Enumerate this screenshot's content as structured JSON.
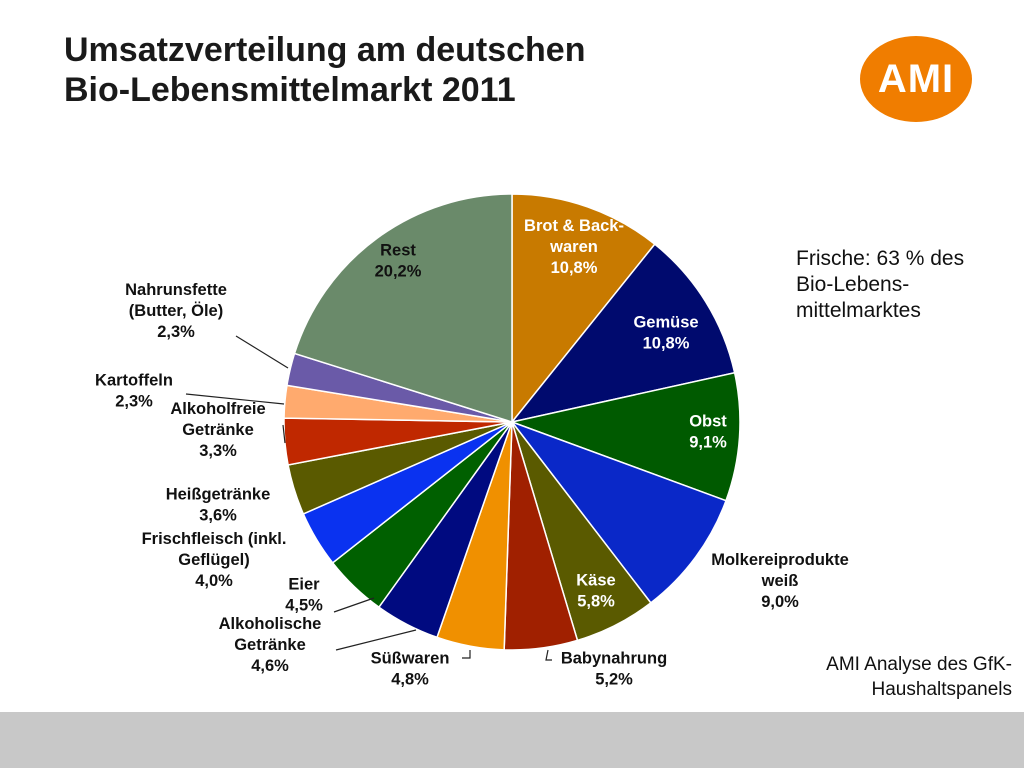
{
  "title": {
    "line1": "Umsatzverteilung am deutschen",
    "line2": "Bio-Lebensmittelmarkt 2011"
  },
  "logo": {
    "text": "AMI",
    "color": "#f07d00"
  },
  "note": {
    "lines": [
      "Frische: 63 % des",
      "Bio-Lebens-",
      "mittelmarktes"
    ]
  },
  "source": {
    "lines": [
      "AMI Analyse des GfK-",
      "Haushaltspanels"
    ]
  },
  "chart_data": {
    "type": "pie",
    "title": "Umsatzverteilung am deutschen Bio-Lebensmittelmarkt 2011",
    "unit": "%",
    "slices": [
      {
        "name": "Brot & Back-waren",
        "label_lines": [
          "Brot & Back-",
          "waren"
        ],
        "value": 10.8,
        "value_label": "10,8%",
        "color": "#c87a00",
        "label_inside": true,
        "text_color": "#ffffff"
      },
      {
        "name": "Gemüse",
        "label_lines": [
          "Gemüse"
        ],
        "value": 10.8,
        "value_label": "10,8%",
        "color": "#000a6e",
        "label_inside": true,
        "text_color": "#ffffff"
      },
      {
        "name": "Obst",
        "label_lines": [
          "Obst"
        ],
        "value": 9.1,
        "value_label": "9,1%",
        "color": "#005a00",
        "label_inside": true,
        "text_color": "#ffffff"
      },
      {
        "name": "Molkereiprodukte weiß",
        "label_lines": [
          "Molkereiprodukte",
          "weiß"
        ],
        "value": 9.0,
        "value_label": "9,0%",
        "color": "#0a28c8",
        "label_inside": false,
        "text_color": "#111111"
      },
      {
        "name": "Käse",
        "label_lines": [
          "Käse"
        ],
        "value": 5.8,
        "value_label": "5,8%",
        "color": "#5a5a00",
        "label_inside": true,
        "text_color": "#ffffff"
      },
      {
        "name": "Babynahrung",
        "label_lines": [
          "Babynahrung"
        ],
        "value": 5.2,
        "value_label": "5,2%",
        "color": "#a02000",
        "label_inside": false,
        "text_color": "#111111"
      },
      {
        "name": "Süßwaren",
        "label_lines": [
          "Süßwaren"
        ],
        "value": 4.8,
        "value_label": "4,8%",
        "color": "#f09000",
        "label_inside": false,
        "text_color": "#111111"
      },
      {
        "name": "Alkoholische Getränke",
        "label_lines": [
          "Alkoholische",
          "Getränke"
        ],
        "value": 4.6,
        "value_label": "4,6%",
        "color": "#000a80",
        "label_inside": false,
        "text_color": "#111111"
      },
      {
        "name": "Eier",
        "label_lines": [
          "Eier"
        ],
        "value": 4.5,
        "value_label": "4,5%",
        "color": "#006000",
        "label_inside": false,
        "text_color": "#111111"
      },
      {
        "name": "Frischfleisch (inkl. Geflügel)",
        "label_lines": [
          "Frischfleisch (inkl.",
          "Geflügel)"
        ],
        "value": 4.0,
        "value_label": "4,0%",
        "color": "#0a32f0",
        "label_inside": false,
        "text_color": "#111111"
      },
      {
        "name": "Heißgetränke",
        "label_lines": [
          "Heißgetränke"
        ],
        "value": 3.6,
        "value_label": "3,6%",
        "color": "#5a5a00",
        "label_inside": false,
        "text_color": "#111111"
      },
      {
        "name": "Alkoholfreie Getränke",
        "label_lines": [
          "Alkoholfreie",
          "Getränke"
        ],
        "value": 3.3,
        "value_label": "3,3%",
        "color": "#c02800",
        "label_inside": false,
        "text_color": "#111111"
      },
      {
        "name": "Kartoffeln",
        "label_lines": [
          "Kartoffeln"
        ],
        "value": 2.3,
        "value_label": "2,3%",
        "color": "#ffaa6e",
        "label_inside": false,
        "text_color": "#111111"
      },
      {
        "name": "Nahrunsfette (Butter, Öle)",
        "label_lines": [
          "Nahrunsfette",
          "(Butter, Öle)"
        ],
        "value": 2.3,
        "value_label": "2,3%",
        "color": "#6a5aa8",
        "label_inside": false,
        "text_color": "#111111"
      },
      {
        "name": "Rest",
        "label_lines": [
          "Rest"
        ],
        "value": 20.2,
        "value_label": "20,2%",
        "color": "#6a8a6a",
        "label_inside": true,
        "text_color": "#111111"
      }
    ]
  }
}
